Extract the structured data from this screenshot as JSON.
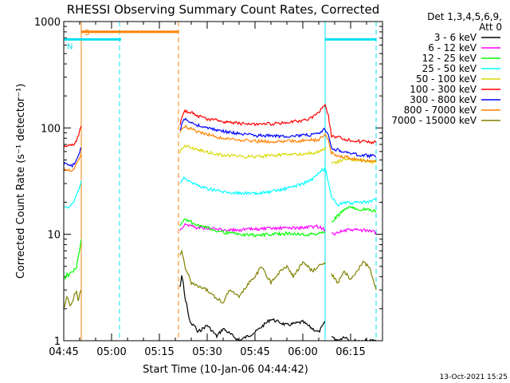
{
  "chart_data": {
    "type": "line",
    "title": "RHESSI Observing Summary Count Rates, Corrected",
    "xlabel": "Start Time (10-Jan-06 04:44:42)",
    "ylabel": "Corrected Count Rate (s⁻¹ detector⁻¹)",
    "yscale": "log",
    "ylim": [
      1,
      1000
    ],
    "xlim_minutes_after_0445": [
      0,
      100
    ],
    "x_tick_labels": [
      "04:45",
      "05:00",
      "05:15",
      "05:30",
      "05:45",
      "06:00",
      "06:15"
    ],
    "x_tick_minutes": [
      0,
      15,
      30,
      45,
      60,
      75,
      90
    ],
    "y_tick_labels": [
      "1",
      "10",
      "100",
      "1000"
    ],
    "y_tick_values": [
      1,
      10,
      100,
      1000
    ],
    "legend_header": [
      "Det 1,3,4,5,6,9,",
      "Att 0"
    ],
    "legend_placement": "right",
    "footer_date": "13-Oct-2021 15:25",
    "flags": [
      {
        "label": "S",
        "color": "#ff8000",
        "start": 5.5,
        "end": 36,
        "level": 800
      },
      {
        "label": "N",
        "color": "#00e0f0",
        "start": 0,
        "end": 18,
        "level": 680
      },
      {
        "label": "",
        "color": "#00e0f0",
        "start": 82,
        "end": 98,
        "level": 680
      }
    ],
    "markers": [
      {
        "x": 5.5,
        "color": "#ff8000",
        "style": "solid"
      },
      {
        "x": 17.5,
        "color": "#00e0f0",
        "style": "dashed"
      },
      {
        "x": 36,
        "color": "#ff8000",
        "style": "dashed"
      },
      {
        "x": 82,
        "color": "#00e0f0",
        "style": "solid"
      },
      {
        "x": 98,
        "color": "#00e0f0",
        "style": "dashed"
      }
    ],
    "data_gaps": [
      [
        5.5,
        36.5
      ],
      [
        82.3,
        83.5
      ]
    ],
    "series": [
      {
        "name": "3 - 6 keV",
        "color": "#000000",
        "x": [
          36.5,
          37,
          37.5,
          38,
          38.5,
          39,
          40,
          41,
          42,
          45,
          48,
          50,
          55,
          60,
          65,
          70,
          75,
          78,
          80,
          82,
          84,
          86,
          88,
          90,
          92,
          95,
          98
        ],
        "values": [
          3.2,
          4,
          3.5,
          2.5,
          2.3,
          1.8,
          1.4,
          1.4,
          1.2,
          1.4,
          1.1,
          1.3,
          1,
          1.2,
          1.6,
          1.4,
          1.5,
          1.3,
          1.2,
          1.5,
          1.1,
          1,
          1.1,
          1,
          1,
          1,
          1
        ]
      },
      {
        "name": "6 - 12 keV",
        "color": "#ff00ff",
        "x": [
          36.5,
          38,
          40,
          42,
          45,
          50,
          55,
          60,
          65,
          70,
          75,
          78,
          80,
          82,
          84,
          86,
          88,
          90,
          92,
          95,
          98
        ],
        "values": [
          11,
          12.5,
          12,
          11.5,
          11.5,
          11,
          11,
          11.2,
          11.3,
          11.5,
          11.5,
          11.8,
          11.8,
          11,
          10,
          10.5,
          10.8,
          11,
          11,
          10.8,
          10.5
        ]
      },
      {
        "name": "12 - 25 keV",
        "color": "#00ff00",
        "x": [
          0,
          0.5,
          1,
          1.5,
          2,
          3,
          4,
          5,
          5.5,
          36.5,
          38,
          40,
          42,
          45,
          50,
          55,
          60,
          65,
          70,
          75,
          78,
          80,
          82,
          84,
          86,
          88,
          90,
          92,
          95,
          98
        ],
        "values": [
          4.2,
          3.8,
          4.2,
          4.1,
          4.3,
          4.5,
          5,
          7,
          9,
          12,
          14,
          13,
          12,
          11.5,
          10.5,
          10,
          9.8,
          10,
          10.2,
          10,
          10,
          10.2,
          10.5,
          13,
          15,
          17,
          18,
          17.5,
          17,
          16.5
        ]
      },
      {
        "name": "25 - 50 keV",
        "color": "#00ffff",
        "x": [
          0,
          1,
          2,
          3,
          4,
          5,
          5.5,
          36.5,
          38,
          40,
          42,
          45,
          48,
          50,
          55,
          60,
          65,
          70,
          75,
          78,
          80,
          82,
          83,
          84,
          85,
          86,
          88,
          90,
          92,
          95,
          98
        ],
        "values": [
          18,
          17.5,
          18,
          20,
          23,
          28,
          32,
          31,
          34,
          31,
          29,
          27,
          26,
          25,
          24.5,
          24,
          25,
          27,
          30,
          33,
          37,
          42,
          30,
          22,
          20,
          19,
          20,
          19.5,
          20,
          20,
          21
        ]
      },
      {
        "name": "50 - 100 keV",
        "color": "#d8d800",
        "x": [
          36.5,
          37,
          38,
          40,
          42,
          45,
          48,
          50,
          55,
          60,
          65,
          70,
          75,
          78,
          80,
          82,
          82.3,
          84,
          86,
          88,
          90,
          92,
          95,
          98
        ],
        "values": [
          58,
          65,
          68,
          66,
          62,
          59,
          57,
          55,
          54,
          54,
          55,
          56,
          57,
          58,
          60,
          64,
          66,
          46,
          48,
          51,
          51,
          50,
          49,
          47
        ]
      },
      {
        "name": "100 - 300 keV",
        "color": "#ff0000",
        "x": [
          0,
          1,
          2,
          3,
          4,
          5,
          5.5,
          36.5,
          37,
          38,
          40,
          42,
          45,
          48,
          50,
          55,
          60,
          65,
          70,
          75,
          78,
          80,
          81,
          82,
          83,
          84,
          86,
          88,
          90,
          92,
          95,
          98
        ],
        "values": [
          66,
          67,
          68,
          69,
          75,
          95,
          104,
          110,
          125,
          145,
          140,
          130,
          122,
          118,
          115,
          110,
          108,
          109,
          112,
          118,
          125,
          140,
          155,
          165,
          130,
          85,
          82,
          78,
          76,
          75,
          74,
          73
        ]
      },
      {
        "name": "300 - 800 keV",
        "color": "#0000ff",
        "x": [
          0,
          1,
          2,
          3,
          4,
          5,
          5.5,
          36.5,
          37,
          38,
          40,
          42,
          45,
          48,
          50,
          55,
          60,
          65,
          70,
          75,
          78,
          80,
          81,
          82,
          83,
          84,
          86,
          88,
          90,
          92,
          95,
          98
        ],
        "values": [
          46,
          45,
          44,
          45,
          50,
          60,
          65,
          95,
          110,
          120,
          113,
          106,
          100,
          96,
          93,
          88,
          85,
          84,
          84,
          85,
          86,
          88,
          92,
          98,
          85,
          65,
          62,
          60,
          58,
          56,
          55,
          54
        ]
      },
      {
        "name": "800 - 7000 keV",
        "color": "#ff8000",
        "x": [
          0,
          1,
          2,
          3,
          4,
          5,
          5.5,
          36.5,
          37,
          38,
          40,
          42,
          45,
          48,
          50,
          55,
          60,
          65,
          70,
          75,
          78,
          80,
          81,
          82,
          83,
          84,
          86,
          88,
          90,
          92,
          95,
          98
        ],
        "values": [
          42,
          41,
          40,
          41,
          45,
          52,
          58,
          88,
          98,
          104,
          98,
          92,
          87,
          83,
          80,
          77,
          75,
          75,
          75,
          76,
          77,
          78,
          82,
          86,
          78,
          58,
          55,
          54,
          52,
          50,
          49,
          48
        ]
      },
      {
        "name": "7000 - 15000 keV",
        "color": "#808000",
        "x": [
          0,
          1,
          2,
          3,
          4,
          4.5,
          5,
          5.5,
          36.5,
          37,
          38,
          40,
          42,
          45,
          48,
          50,
          52,
          55,
          58,
          60,
          62,
          65,
          68,
          70,
          72,
          75,
          78,
          80,
          82,
          84,
          86,
          88,
          90,
          92,
          94,
          96,
          98
        ],
        "values": [
          2,
          2.6,
          2.1,
          2.5,
          3,
          2.3,
          2.8,
          3,
          6.5,
          7,
          5,
          3.5,
          3.2,
          3,
          2.5,
          2.3,
          3,
          2.6,
          3.5,
          4,
          5,
          3.5,
          4.5,
          5,
          4,
          5.5,
          4.5,
          5,
          5.5,
          4.2,
          3.5,
          4.5,
          3.8,
          4.5,
          5.5,
          4.8,
          3
        ]
      }
    ]
  }
}
